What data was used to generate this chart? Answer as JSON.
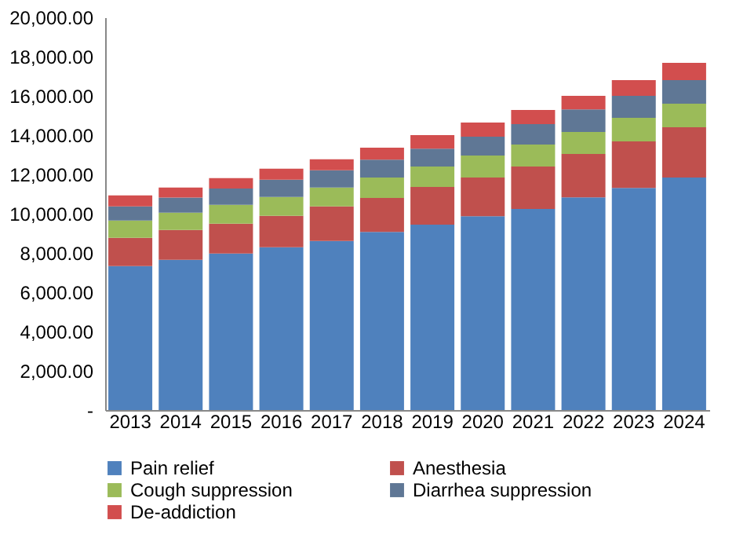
{
  "chart_data": {
    "type": "bar",
    "stacked": true,
    "categories": [
      "2013",
      "2014",
      "2015",
      "2016",
      "2017",
      "2018",
      "2019",
      "2020",
      "2021",
      "2022",
      "2023",
      "2024"
    ],
    "series": [
      {
        "name": "Pain relief",
        "color": "#4f81bd",
        "values": [
          7330,
          7650,
          7970,
          8290,
          8610,
          9070,
          9440,
          9870,
          10240,
          10830,
          11310,
          11840
        ]
      },
      {
        "name": "Anesthesia",
        "color": "#c0504d",
        "values": [
          1440,
          1520,
          1520,
          1600,
          1760,
          1730,
          1920,
          1970,
          2160,
          2210,
          2370,
          2560
        ]
      },
      {
        "name": "Cough suppression",
        "color": "#9bbb59",
        "values": [
          880,
          880,
          960,
          960,
          960,
          1040,
          1040,
          1120,
          1120,
          1120,
          1200,
          1200
        ]
      },
      {
        "name": "Diarrhea suppression",
        "color": "#5f7795",
        "values": [
          720,
          770,
          830,
          880,
          880,
          910,
          910,
          960,
          1040,
          1150,
          1120,
          1200
        ]
      },
      {
        "name": "De-addiction",
        "color": "#d24e4e",
        "values": [
          560,
          510,
          530,
          560,
          560,
          610,
          690,
          720,
          720,
          690,
          800,
          880
        ]
      }
    ],
    "ylim": [
      0,
      20000
    ],
    "yticks": [
      {
        "value": 0,
        "label": "-"
      },
      {
        "value": 2000,
        "label": "2,000.00"
      },
      {
        "value": 4000,
        "label": "4,000.00"
      },
      {
        "value": 6000,
        "label": "6,000.00"
      },
      {
        "value": 8000,
        "label": "8,000.00"
      },
      {
        "value": 10000,
        "label": "10,000.00"
      },
      {
        "value": 12000,
        "label": "12,000.00"
      },
      {
        "value": 14000,
        "label": "14,000.00"
      },
      {
        "value": 16000,
        "label": "16,000.00"
      },
      {
        "value": 18000,
        "label": "18,000.00"
      },
      {
        "value": 20000,
        "label": "20,000.00"
      }
    ],
    "grid": false,
    "legend": "bottom"
  }
}
